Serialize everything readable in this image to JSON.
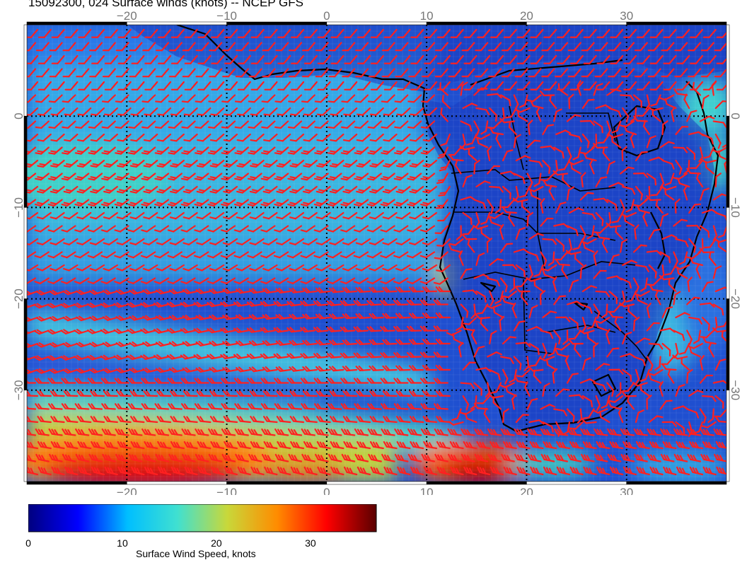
{
  "header": {
    "title": "15092300, 024 Surface winds (knots) -- NCEP GFS"
  },
  "map": {
    "lon_ticks": [
      "−20",
      "−10",
      "0",
      "10",
      "20",
      "30"
    ],
    "lat_ticks": [
      "0",
      "−10",
      "−20",
      "−30"
    ],
    "lon_values": [
      -20,
      -10,
      0,
      10,
      20,
      30
    ],
    "lat_values": [
      0,
      -10,
      -20,
      -30
    ],
    "extent": {
      "lon": [
        -30,
        40
      ],
      "lat": [
        -40,
        10
      ]
    },
    "barb_color": "#ff2020",
    "coast_color": "#000000",
    "gridline_style": "dotted",
    "region": "Southern Africa and South Atlantic"
  },
  "colorbar": {
    "title": "Surface Wind Speed, knots",
    "tick_labels": [
      "0",
      "10",
      "20",
      "30"
    ],
    "tick_values": [
      0,
      10,
      20,
      30
    ],
    "range": [
      0,
      37
    ],
    "colormap": [
      "#00007f",
      "#0000ff",
      "#00bfff",
      "#40e0d0",
      "#c8d83a",
      "#ff8c00",
      "#ff0000",
      "#5a0000"
    ]
  }
}
